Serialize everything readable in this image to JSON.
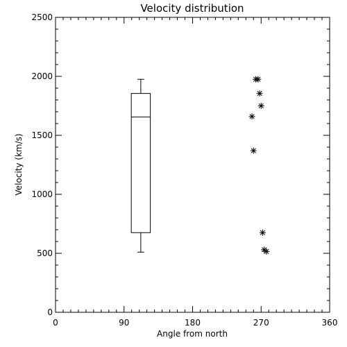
{
  "chart_data": {
    "type": "box-and-scatter",
    "title": "Velocity distribution",
    "xlabel": "Angle from north",
    "ylabel": "Velocity (km/s)",
    "xlim": [
      0,
      360
    ],
    "ylim": [
      0,
      2500
    ],
    "xticks": [
      0,
      90,
      180,
      270,
      360
    ],
    "yticks": [
      0,
      500,
      1000,
      1500,
      2000,
      2500
    ],
    "x_minor_step": 10,
    "y_minor_step": 100,
    "grid": false,
    "box": {
      "x": 112,
      "width": 25,
      "whisker_low": 510,
      "q1": 675,
      "median": 1655,
      "q3": 1855,
      "whisker_high": 1975
    },
    "scatter": {
      "marker": "asterisk",
      "points": [
        {
          "x": 263,
          "y": 1975
        },
        {
          "x": 266,
          "y": 1975
        },
        {
          "x": 268,
          "y": 1855
        },
        {
          "x": 270,
          "y": 1750
        },
        {
          "x": 258,
          "y": 1660
        },
        {
          "x": 260,
          "y": 1370
        },
        {
          "x": 272,
          "y": 675
        },
        {
          "x": 274,
          "y": 530
        },
        {
          "x": 277,
          "y": 515
        }
      ]
    }
  }
}
